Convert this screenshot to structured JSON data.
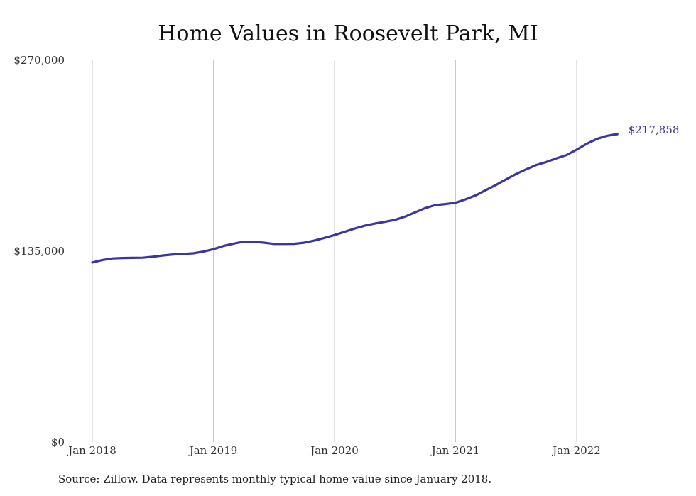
{
  "chart_data": {
    "type": "line",
    "title": "Home Values in Roosevelt Park, MI",
    "xlabel": "",
    "ylabel": "",
    "ylim": [
      0,
      270000
    ],
    "y_ticks": [
      "$0",
      "$135,000",
      "$270,000"
    ],
    "y_tick_values": [
      0,
      135000,
      270000
    ],
    "x_ticks": [
      "Jan 2018",
      "Jan 2019",
      "Jan 2020",
      "Jan 2021",
      "Jan 2022"
    ],
    "x_tick_dates": [
      "2018-01",
      "2019-01",
      "2020-01",
      "2021-01",
      "2022-01"
    ],
    "grid": "vertical",
    "series": [
      {
        "color": "#3b35a0",
        "end_label": "$217,858",
        "x": [
          "2018-01",
          "2018-02",
          "2018-03",
          "2018-04",
          "2018-05",
          "2018-06",
          "2018-07",
          "2018-08",
          "2018-09",
          "2018-10",
          "2018-11",
          "2018-12",
          "2019-01",
          "2019-02",
          "2019-03",
          "2019-04",
          "2019-05",
          "2019-06",
          "2019-07",
          "2019-08",
          "2019-09",
          "2019-10",
          "2019-11",
          "2019-12",
          "2020-01",
          "2020-02",
          "2020-03",
          "2020-04",
          "2020-05",
          "2020-06",
          "2020-07",
          "2020-08",
          "2020-09",
          "2020-10",
          "2020-11",
          "2020-12",
          "2021-01",
          "2021-02",
          "2021-03",
          "2021-04",
          "2021-05",
          "2021-06",
          "2021-07",
          "2021-08",
          "2021-09",
          "2021-10",
          "2021-11",
          "2021-12",
          "2022-01",
          "2022-02",
          "2022-03",
          "2022-04",
          "2022-05"
        ],
        "values": [
          127000,
          128800,
          129900,
          130200,
          130300,
          130400,
          131100,
          132000,
          132700,
          133100,
          133500,
          134700,
          136400,
          138700,
          140300,
          141700,
          141600,
          141000,
          140100,
          140100,
          140200,
          141000,
          142500,
          144400,
          146400,
          148700,
          151000,
          153000,
          154500,
          155800,
          157200,
          159500,
          162500,
          165500,
          167600,
          168300,
          169300,
          171700,
          174500,
          178200,
          181800,
          185800,
          189600,
          192900,
          196000,
          198100,
          200700,
          203000,
          206800,
          211000,
          214400,
          216600,
          217858
        ]
      }
    ]
  },
  "source_note": "Source: Zillow. Data represents monthly typical home value since January 2018."
}
